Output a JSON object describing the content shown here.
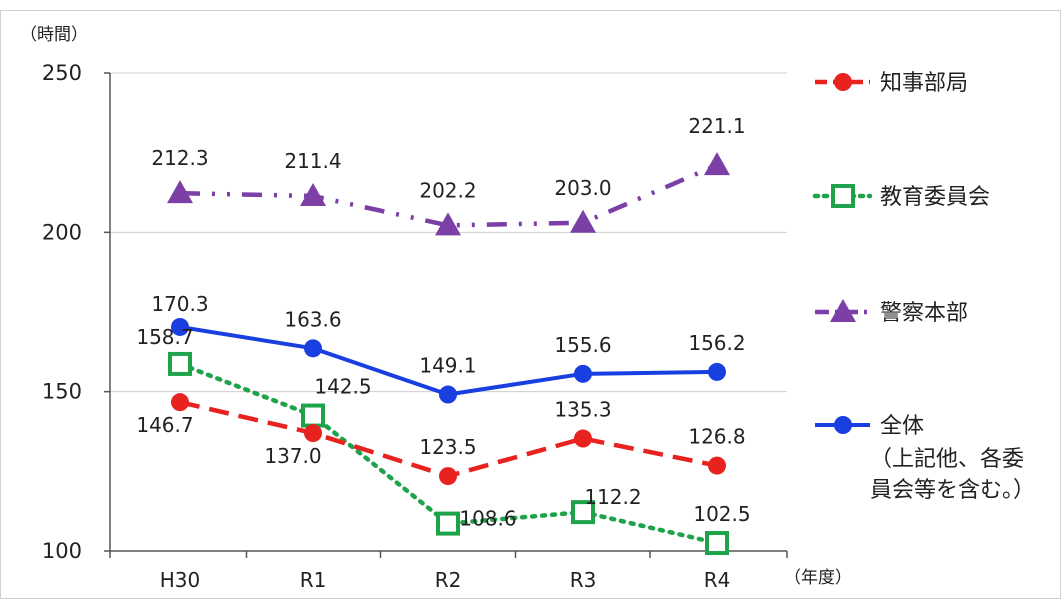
{
  "chart_data": {
    "type": "line",
    "ylabel": "（時間）",
    "xlabel": "（年度）",
    "categories": [
      "H30",
      "R1",
      "R2",
      "R3",
      "R4"
    ],
    "ylim": [
      100,
      250
    ],
    "yticks": [
      100,
      150,
      200,
      250
    ],
    "grid": true,
    "legend_position": "right",
    "series": [
      {
        "name": "知事部局",
        "values": [
          146.7,
          137.0,
          123.5,
          135.3,
          126.8
        ],
        "labels": [
          "146.7",
          "137.0",
          "123.5",
          "135.3",
          "126.8"
        ],
        "color": "#e8231f",
        "line_style": "dashed",
        "marker": "circle"
      },
      {
        "name": "教育委員会",
        "values": [
          158.7,
          142.5,
          108.6,
          112.2,
          102.5
        ],
        "labels": [
          "158.7",
          "142.5",
          "108.6",
          "112.2",
          "102.5"
        ],
        "color": "#1ea34a",
        "line_style": "dotted",
        "marker": "square"
      },
      {
        "name": "警察本部",
        "values": [
          212.3,
          211.4,
          202.2,
          203.0,
          221.1
        ],
        "labels": [
          "212.3",
          "211.4",
          "202.2",
          "203.0",
          "221.1"
        ],
        "color": "#7b3fa6",
        "line_style": "dash-dot",
        "marker": "triangle"
      },
      {
        "name": "全体",
        "name_note_line1": "（上記他、各委",
        "name_note_line2": "員会等を含む。）",
        "values": [
          170.3,
          163.6,
          149.1,
          155.6,
          156.2
        ],
        "labels": [
          "170.3",
          "163.6",
          "149.1",
          "155.6",
          "156.2"
        ],
        "color": "#1a3fe0",
        "line_style": "solid",
        "marker": "circle"
      }
    ]
  }
}
